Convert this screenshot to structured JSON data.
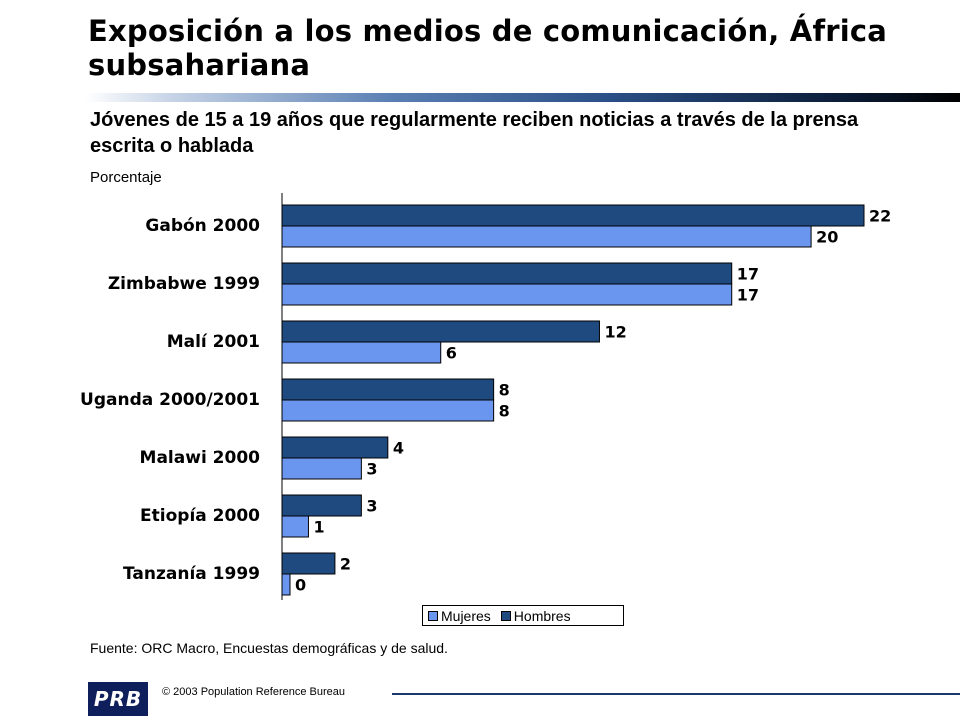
{
  "header": {
    "title": "Exposición a los medios de comunicación, África subsahariana",
    "subtitle": "Jóvenes de 15 a 19 años que regularmente reciben noticias a través de la prensa escrita o hablada",
    "unit": "Porcentaje"
  },
  "chart_data": {
    "type": "bar",
    "orientation": "horizontal",
    "title": "Jóvenes de 15 a 19 años que regularmente reciben noticias a través de la prensa escrita o hablada",
    "ylabel": "Porcentaje",
    "categories": [
      "Gabón 2000",
      "Zimbabwe 1999",
      "Malí 2001",
      "Uganda 2000/2001",
      "Malawi 2000",
      "Etiopía 2000",
      "Tanzanía 1999"
    ],
    "series": [
      {
        "name": "Hombres",
        "color": "#1f4a80",
        "values": [
          22,
          17,
          12,
          8,
          4,
          3,
          2
        ]
      },
      {
        "name": "Mujeres",
        "color": "#6b96f0",
        "values": [
          20,
          17,
          6,
          8,
          3,
          1,
          0
        ]
      }
    ],
    "xlim": [
      0,
      22
    ],
    "legend_position": "bottom-right",
    "grid": false
  },
  "legend": {
    "mujeres": "Mujeres",
    "hombres": "Hombres"
  },
  "source": "Fuente: ORC Macro, Encuestas demográficas y de salud.",
  "footer": {
    "copyright": "© 2003 Population Reference Bureau",
    "logo": "PRB"
  }
}
